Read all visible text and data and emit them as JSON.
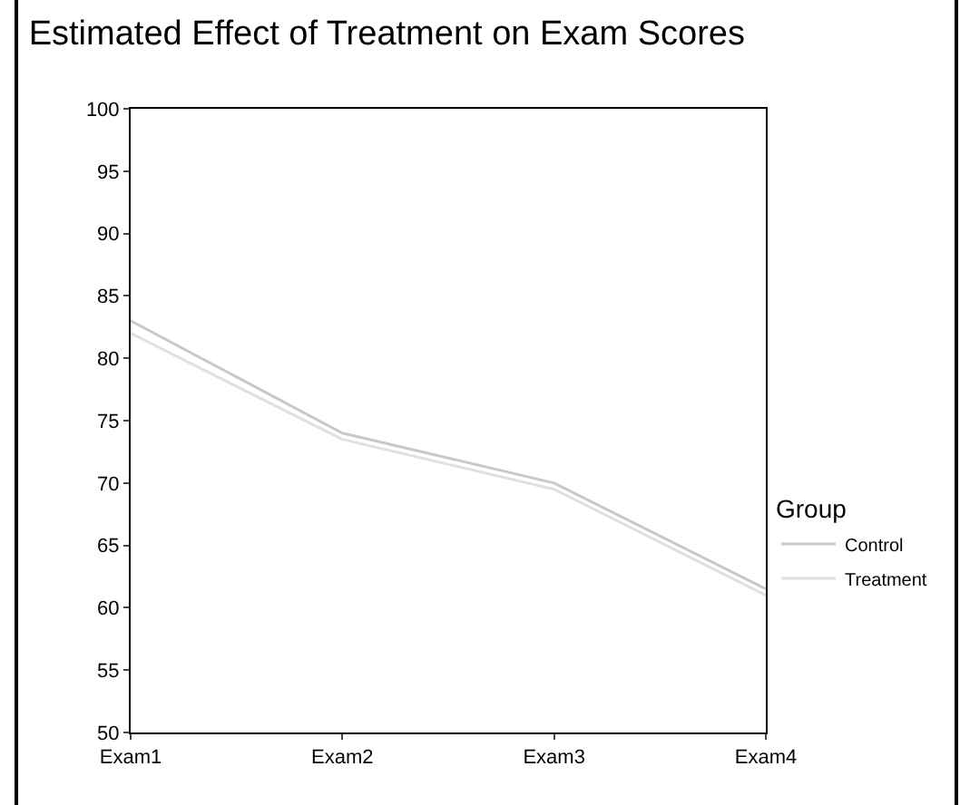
{
  "chart_data": {
    "type": "line",
    "title": "Estimated Effect of Treatment on Exam Scores",
    "categories": [
      "Exam1",
      "Exam2",
      "Exam3",
      "Exam4"
    ],
    "series": [
      {
        "name": "Control",
        "color": "#c8c8c8",
        "values": [
          83,
          74,
          70,
          61.5
        ]
      },
      {
        "name": "Treatment",
        "color": "#e0e0e0",
        "values": [
          82,
          73.5,
          69.5,
          61
        ]
      }
    ],
    "ylim": [
      50,
      100
    ],
    "yticks": [
      50,
      55,
      60,
      65,
      70,
      75,
      80,
      85,
      90,
      95,
      100
    ],
    "legend_title": "Group",
    "legend": "right",
    "marker": "none",
    "line_style": "solid"
  }
}
